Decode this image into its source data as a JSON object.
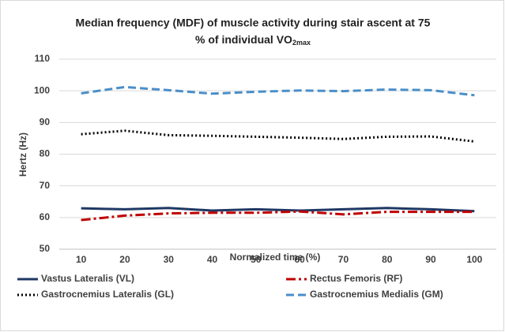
{
  "chart_data": {
    "type": "line",
    "title_lines": [
      "Median frequency (MDF) of muscle activity during stair ascent at 75",
      "% of individual VO"
    ],
    "title_subscript": "2max",
    "x_label": "Normalized time (%)",
    "y_label": "Hertz (Hz)",
    "categories": [
      "10",
      "20",
      "30",
      "40",
      "50",
      "60",
      "70",
      "80",
      "90",
      "100"
    ],
    "ylim": [
      50,
      110
    ],
    "yticks": [
      50,
      60,
      70,
      80,
      90,
      100,
      110
    ],
    "grid": true,
    "legend": "bottom",
    "series": [
      {
        "name": "Vastus Lateralis (VL)",
        "color": "#1f3864",
        "style": "solid",
        "values": [
          62.9,
          62.6,
          63.0,
          62.2,
          62.6,
          62.2,
          62.6,
          63.0,
          62.6,
          62.0
        ]
      },
      {
        "name": "Rectus Femoris (RF)",
        "color": "#c00000",
        "style": "dashdot",
        "values": [
          59.2,
          60.6,
          61.3,
          61.5,
          61.5,
          61.9,
          61.0,
          61.8,
          61.8,
          61.8
        ]
      },
      {
        "name": "Gastrocnemius Lateralis (GL)",
        "color": "#000000",
        "style": "dotted",
        "values": [
          86.3,
          87.4,
          86.0,
          85.8,
          85.5,
          85.2,
          84.8,
          85.5,
          85.6,
          84.0
        ]
      },
      {
        "name": "Gastrocnemius Medialis (GM)",
        "color": "#4a8ec9",
        "style": "dashed",
        "values": [
          99.2,
          101.2,
          100.2,
          99.1,
          99.7,
          100.1,
          99.9,
          100.4,
          100.2,
          98.6
        ]
      }
    ]
  }
}
